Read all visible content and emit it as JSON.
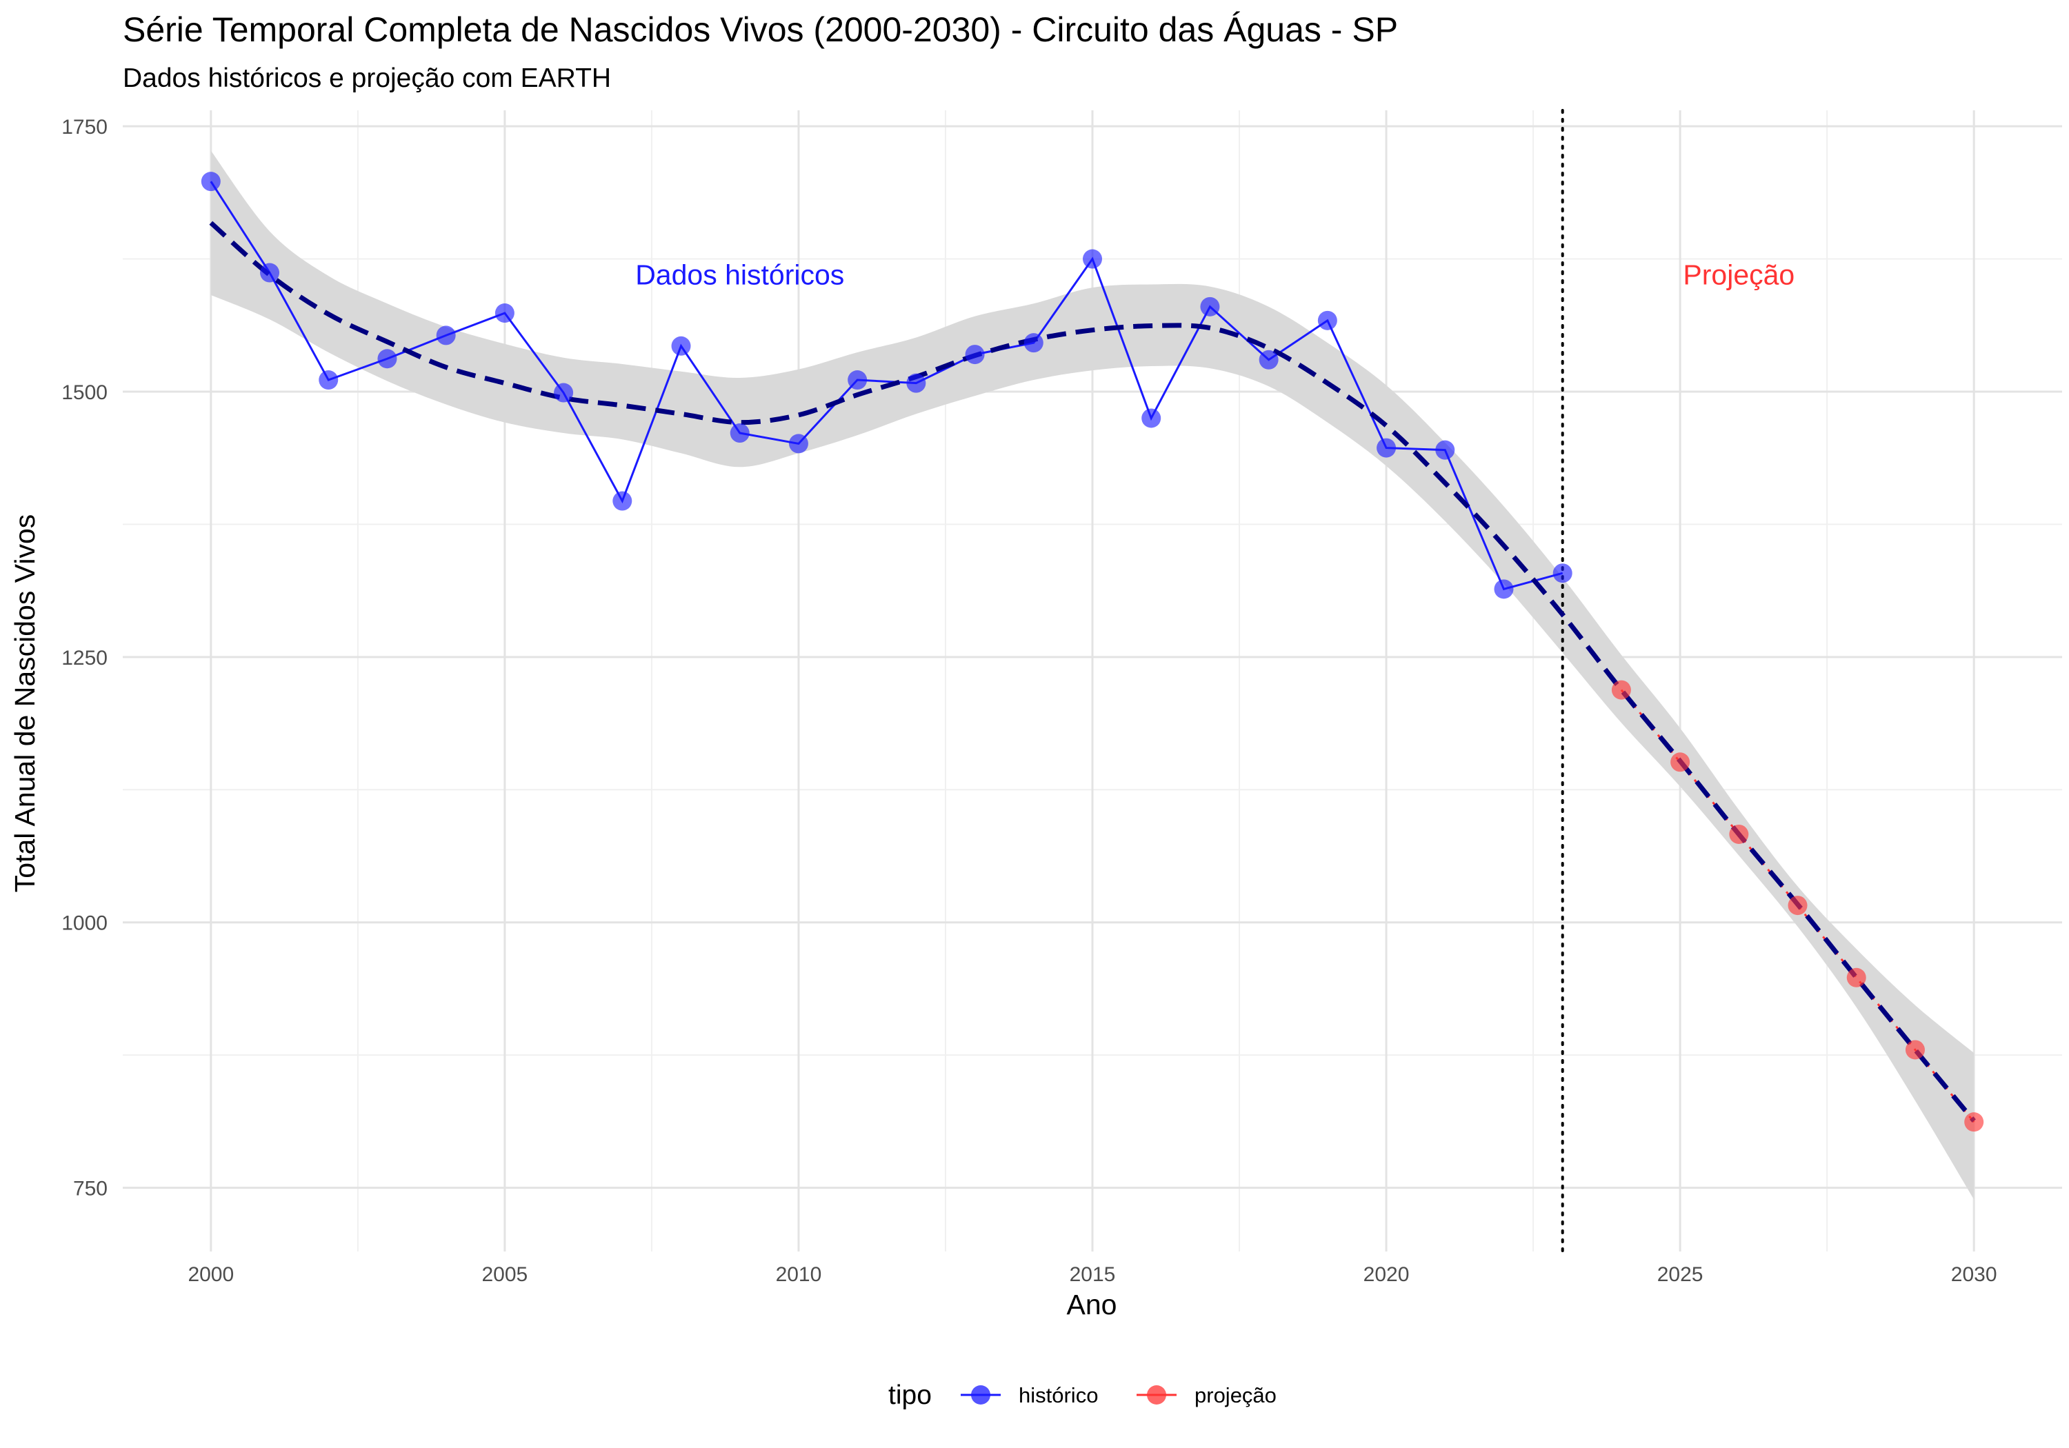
{
  "chart_data": {
    "type": "line",
    "title": "Série Temporal Completa de Nascidos Vivos (2000-2030) -  Circuito das Águas - SP",
    "subtitle": "Dados históricos e projeção com EARTH",
    "xlabel": "Ano",
    "ylabel": "Total Anual de Nascidos Vivos",
    "xlim": [
      1998.5,
      2031.5
    ],
    "ylim": [
      690,
      1765
    ],
    "x_ticks": [
      2000,
      2005,
      2010,
      2015,
      2020,
      2025,
      2030
    ],
    "x_tick_labels": [
      "2000",
      "2005",
      "2010",
      "2015",
      "2020",
      "2025",
      "2030"
    ],
    "y_ticks": [
      750,
      1000,
      1250,
      1500,
      1750
    ],
    "y_tick_labels": [
      "750",
      "1000",
      "1250",
      "1500",
      "1750"
    ],
    "grid": true,
    "legend": {
      "title": "tipo",
      "position": "bottom",
      "entries": [
        {
          "label": "histórico",
          "color": "#1a1aff"
        },
        {
          "label": "projeção",
          "color": "#ff3333"
        }
      ]
    },
    "series": [
      {
        "name": "histórico",
        "color": "#1a1aff",
        "x": [
          2000,
          2001,
          2002,
          2003,
          2004,
          2005,
          2006,
          2007,
          2008,
          2009,
          2010,
          2011,
          2012,
          2013,
          2014,
          2015,
          2016,
          2017,
          2018,
          2019,
          2020,
          2021,
          2022,
          2023
        ],
        "y": [
          1698,
          1612,
          1511,
          1531,
          1553,
          1574,
          1499,
          1397,
          1543,
          1461,
          1451,
          1511,
          1508,
          1535,
          1546,
          1625,
          1475,
          1580,
          1530,
          1567,
          1447,
          1445,
          1314,
          1329
        ]
      },
      {
        "name": "projeção",
        "color": "#ff3333",
        "x": [
          2024,
          2025,
          2026,
          2027,
          2028,
          2029,
          2030
        ],
        "y": [
          1219,
          1151,
          1083,
          1016,
          948,
          880,
          812
        ]
      }
    ],
    "smooth": {
      "color": "#000080",
      "band_color": "#d9d9d9",
      "x": [
        2000,
        2001,
        2002,
        2003,
        2004,
        2005,
        2006,
        2007,
        2008,
        2009,
        2010,
        2011,
        2012,
        2013,
        2014,
        2015,
        2016,
        2017,
        2018,
        2019,
        2020,
        2021,
        2022,
        2023,
        2024,
        2025,
        2026,
        2027,
        2028,
        2029,
        2030
      ],
      "y": [
        1659,
        1610,
        1573,
        1547,
        1523,
        1508,
        1494,
        1487,
        1479,
        1471,
        1478,
        1497,
        1514,
        1534,
        1549,
        1558,
        1562,
        1560,
        1541,
        1508,
        1468,
        1414,
        1355,
        1290,
        1219,
        1152,
        1083,
        1017,
        948,
        880,
        813
      ],
      "lower": [
        1591,
        1568,
        1537,
        1510,
        1488,
        1471,
        1461,
        1455,
        1442,
        1429,
        1442,
        1459,
        1479,
        1496,
        1511,
        1520,
        1524,
        1522,
        1505,
        1471,
        1430,
        1378,
        1319,
        1254,
        1188,
        1128,
        1063,
        996,
        920,
        832,
        739
      ],
      "upper": [
        1727,
        1651,
        1609,
        1583,
        1561,
        1545,
        1532,
        1526,
        1519,
        1513,
        1521,
        1537,
        1551,
        1571,
        1583,
        1598,
        1601,
        1599,
        1580,
        1546,
        1506,
        1452,
        1392,
        1325,
        1252,
        1183,
        1106,
        1034,
        975,
        922,
        877
      ]
    },
    "vline": {
      "x": 2023,
      "style": "dotted"
    },
    "annotations": [
      {
        "text": "Dados históricos",
        "x": 2009,
        "y": 1610,
        "color": "#1a1aff"
      },
      {
        "text": "Projeção",
        "x": 2026,
        "y": 1610,
        "color": "#ff3333"
      }
    ]
  }
}
